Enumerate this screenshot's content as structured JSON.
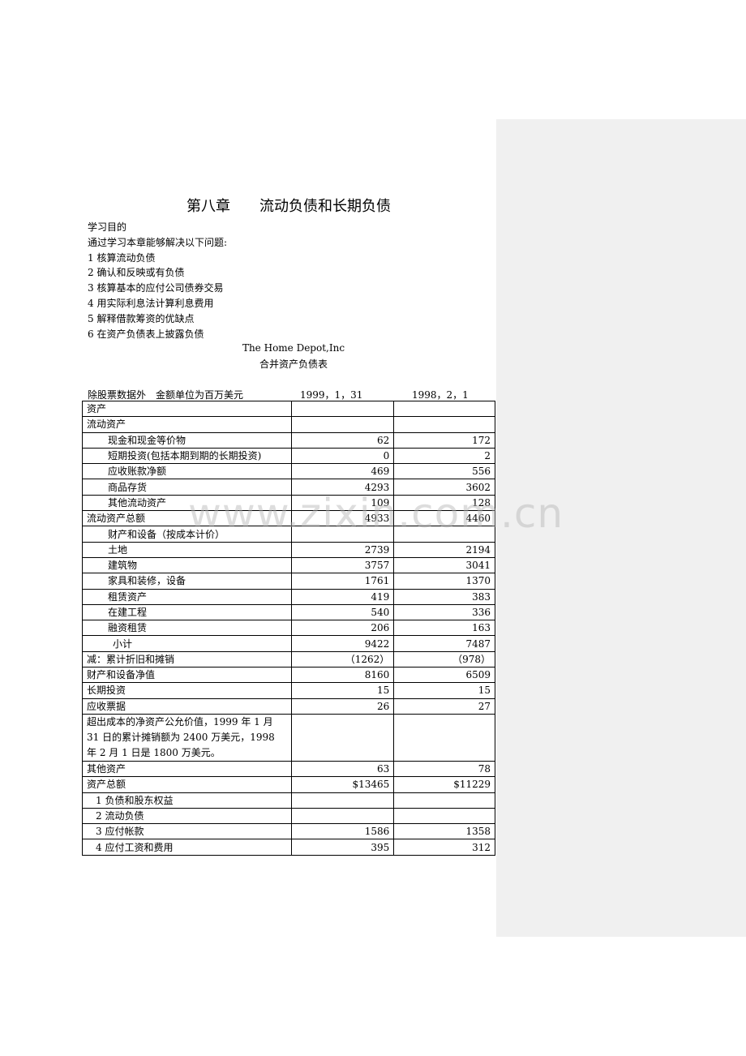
{
  "chapter": {
    "number": "第八章",
    "title": "流动负债和长期负债"
  },
  "objectives": {
    "heading": "学习目的",
    "intro": "通过学习本章能够解决以下问题:",
    "items": [
      "1 核算流动负债",
      "2 确认和反映或有负债",
      "3 核算基本的应付公司债券交易",
      "4 用实际利息法计算利息费用",
      "5 解释借款筹资的优缺点",
      "6 在资产负债表上披露负债"
    ]
  },
  "company": "The Home Depot,Inc",
  "statement_title": "合并资产负债表",
  "table_header": {
    "unit_note": "除股票数据外　金额单位为百万美元",
    "col1": "1999，1，31",
    "col2": "1998，2，1"
  },
  "rows": [
    {
      "label": "资产",
      "v1": "",
      "v2": "",
      "indent": 0
    },
    {
      "label": "流动资产",
      "v1": "",
      "v2": "",
      "indent": 0
    },
    {
      "label": "现金和现金等价物",
      "v1": "62",
      "v2": "172",
      "indent": 1
    },
    {
      "label": "短期投资(包括本期到期的长期投资)",
      "v1": "0",
      "v2": "2",
      "indent": 1
    },
    {
      "label": "应收账款净额",
      "v1": "469",
      "v2": "556",
      "indent": 1
    },
    {
      "label": "商品存货",
      "v1": "4293",
      "v2": "3602",
      "indent": 1
    },
    {
      "label": "其他流动资产",
      "v1": "109",
      "v2": "128",
      "indent": 1
    },
    {
      "label": "流动资产总额",
      "v1": "4933",
      "v2": "4460",
      "indent": 0
    },
    {
      "label": "财产和设备（按成本计价）",
      "v1": "",
      "v2": "",
      "indent": 1
    },
    {
      "label": "土地",
      "v1": "2739",
      "v2": "2194",
      "indent": 1
    },
    {
      "label": "建筑物",
      "v1": "3757",
      "v2": "3041",
      "indent": 1
    },
    {
      "label": "家具和装修，设备",
      "v1": "1761",
      "v2": "1370",
      "indent": 1
    },
    {
      "label": "租赁资产",
      "v1": "419",
      "v2": "383",
      "indent": 1
    },
    {
      "label": "在建工程",
      "v1": "540",
      "v2": "336",
      "indent": 1
    },
    {
      "label": "融资租赁",
      "v1": "206",
      "v2": "163",
      "indent": 1
    },
    {
      "label": "小计",
      "v1": "9422",
      "v2": "7487",
      "indent": 2
    },
    {
      "label": "减：累计折旧和摊销",
      "v1": "（1262）",
      "v2": "（978）",
      "indent": 0
    },
    {
      "label": "财产和设备净值",
      "v1": "8160",
      "v2": "6509",
      "indent": 0
    },
    {
      "label": "长期投资",
      "v1": "15",
      "v2": "15",
      "indent": 0
    },
    {
      "label": "应收票据",
      "v1": "26",
      "v2": "27",
      "indent": 0
    },
    {
      "label": "超出成本的净资产公允价值，1999 年 1 月 31 日的累计摊销额为 2400 万美元，1998 年 2 月 1 日是 1800 万美元。",
      "v1": "",
      "v2": "",
      "indent": 0,
      "wrap": true
    },
    {
      "label": "其他资产",
      "v1": "63",
      "v2": "78",
      "indent": 0
    },
    {
      "label": "资产总额",
      "v1": "$13465",
      "v2": "$11229",
      "indent": 0
    },
    {
      "label": "1 负债和股东权益",
      "v1": "",
      "v2": "",
      "indent": 3
    },
    {
      "label": "2 流动负债",
      "v1": "",
      "v2": "",
      "indent": 3
    },
    {
      "label": "3 应付帐款",
      "v1": "1586",
      "v2": "1358",
      "indent": 3
    },
    {
      "label": "4 应付工资和费用",
      "v1": "395",
      "v2": "312",
      "indent": 3
    }
  ],
  "watermark": "www.zixin.com.cn",
  "colors": {
    "side_panel": "#f0f0f0"
  }
}
